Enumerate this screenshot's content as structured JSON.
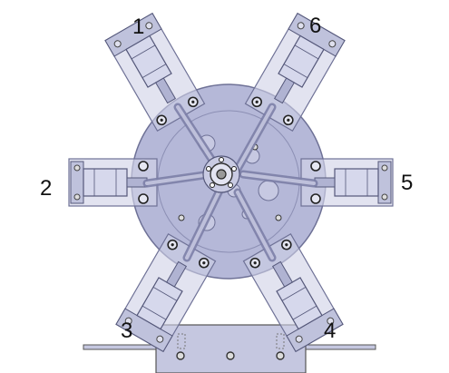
{
  "labels": {
    "cyl1": "1",
    "cyl2": "2",
    "cyl3": "3",
    "cyl4": "4",
    "cyl5": "5",
    "cyl6": "6"
  },
  "colors": {
    "disc": "#b3b6d8",
    "disc_stroke": "#6e7196",
    "plate": "#c8cae2",
    "cylinder": "#cdd0e6",
    "cylinder_stroke": "#55587a",
    "arm": "#9a9dc2",
    "base": "#c5c7e0",
    "label": "#111111"
  },
  "icons": [
    "rotary-disc",
    "pneumatic-cylinder",
    "mounting-base",
    "hub"
  ]
}
